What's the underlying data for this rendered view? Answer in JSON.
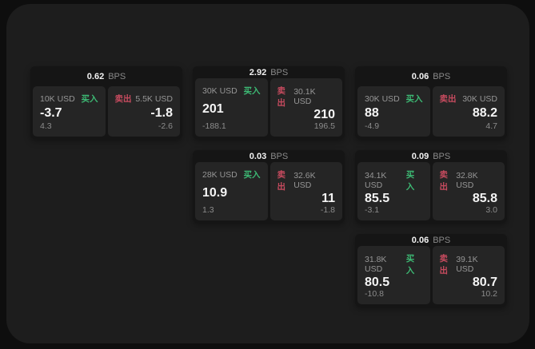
{
  "labels": {
    "bps_unit": "BPS",
    "buy": "买入",
    "sell": "卖出"
  },
  "colors": {
    "buy_green": "#3dba74",
    "sell_red": "#c74b5f",
    "window_bg": "#1d1d1d",
    "card_bg": "#151515",
    "subcard_bg": "#252525"
  },
  "cards": [
    {
      "bps": "0.62",
      "buy": {
        "volume": "10K USD",
        "price": "-3.7",
        "change": "4.3"
      },
      "sell": {
        "volume": "5.5K USD",
        "price": "-1.8",
        "change": "-2.6"
      }
    },
    {
      "bps": "2.92",
      "buy": {
        "volume": "30K USD",
        "price": "201",
        "change": "-188.1"
      },
      "sell": {
        "volume": "30.1K USD",
        "price": "210",
        "change": "196.5"
      }
    },
    {
      "bps": "0.06",
      "buy": {
        "volume": "30K USD",
        "price": "88",
        "change": "-4.9"
      },
      "sell": {
        "volume": "30K USD",
        "price": "88.2",
        "change": "4.7"
      }
    },
    {
      "bps": "0.03",
      "buy": {
        "volume": "28K USD",
        "price": "10.9",
        "change": "1.3"
      },
      "sell": {
        "volume": "32.6K USD",
        "price": "11",
        "change": "-1.8"
      }
    },
    {
      "bps": "0.09",
      "buy": {
        "volume": "34.1K USD",
        "price": "85.5",
        "change": "-3.1"
      },
      "sell": {
        "volume": "32.8K USD",
        "price": "85.8",
        "change": "3.0"
      }
    },
    {
      "bps": "0.06",
      "buy": {
        "volume": "31.8K USD",
        "price": "80.5",
        "change": "-10.8"
      },
      "sell": {
        "volume": "39.1K USD",
        "price": "80.7",
        "change": "10.2"
      }
    }
  ]
}
